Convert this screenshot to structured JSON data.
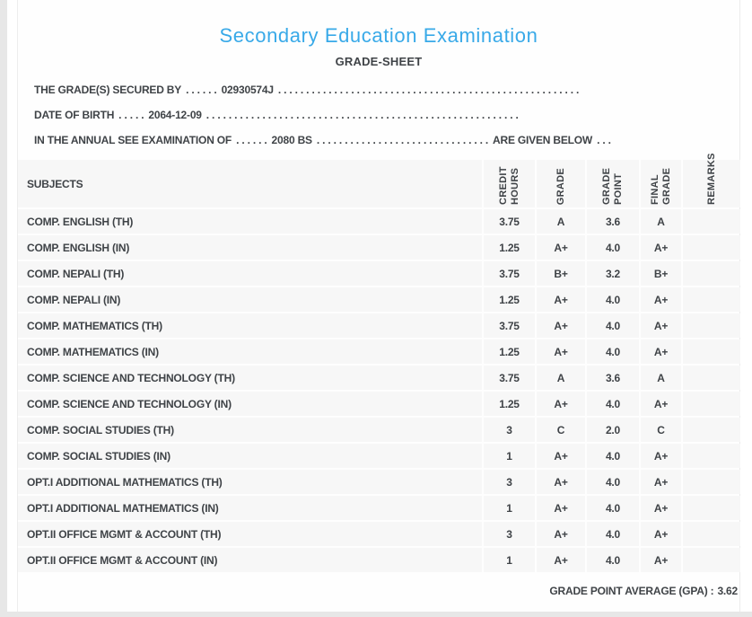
{
  "page": {
    "title": "Secondary Education Examination",
    "subtitle": "GRADE-SHEET"
  },
  "colors": {
    "accent_blue": "#38a9e8",
    "text_dark": "#3f4347",
    "cell_gray": "#f7f7f7"
  },
  "student_lines": {
    "line1": {
      "label": "THE GRADE(S) SECURED BY",
      "dots_before": ". . . . . .",
      "value": "02930574J",
      "dots_after": ". . . . . . . . . . . . . . . . . . . . . . . . . . . . . . . . . . . . . . . . . . . . . . . . . . . . . ."
    },
    "line2": {
      "label": "DATE OF BIRTH",
      "dots_before": ". . . . .",
      "value": "2064-12-09",
      "dots_after": ". . . . . . . . . . . . . . . . . . . . . . . . . . . . . . . . . . . . . . . . . . . . . . . . . . . . . . . ."
    },
    "line3": {
      "label": "IN THE ANNUAL SEE EXAMINATION OF",
      "dots_before": ". . . . . .",
      "value": "2080 BS",
      "dots_mid": ". . . . . . . . . . . . . . . . . . . . . . . . . . . . . . .",
      "suffix": "ARE GIVEN BELOW",
      "dots_end": ". . ."
    }
  },
  "table": {
    "columns": [
      "SUBJECTS",
      "CREDIT HOURS",
      "GRADE",
      "GRADE POINT",
      "FINAL GRADE",
      "REMARKS"
    ],
    "rows": [
      [
        "COMP. ENGLISH (TH)",
        "3.75",
        "A",
        "3.6",
        "A",
        ""
      ],
      [
        "COMP. ENGLISH (IN)",
        "1.25",
        "A+",
        "4.0",
        "A+",
        ""
      ],
      [
        "COMP. NEPALI (TH)",
        "3.75",
        "B+",
        "3.2",
        "B+",
        ""
      ],
      [
        "COMP. NEPALI (IN)",
        "1.25",
        "A+",
        "4.0",
        "A+",
        ""
      ],
      [
        "COMP. MATHEMATICS (TH)",
        "3.75",
        "A+",
        "4.0",
        "A+",
        ""
      ],
      [
        "COMP. MATHEMATICS (IN)",
        "1.25",
        "A+",
        "4.0",
        "A+",
        ""
      ],
      [
        "COMP. SCIENCE AND TECHNOLOGY (TH)",
        "3.75",
        "A",
        "3.6",
        "A",
        ""
      ],
      [
        "COMP. SCIENCE AND TECHNOLOGY (IN)",
        "1.25",
        "A+",
        "4.0",
        "A+",
        ""
      ],
      [
        "COMP. SOCIAL STUDIES (TH)",
        "3",
        "C",
        "2.0",
        "C",
        ""
      ],
      [
        "COMP. SOCIAL STUDIES (IN)",
        "1",
        "A+",
        "4.0",
        "A+",
        ""
      ],
      [
        "OPT.I ADDITIONAL MATHEMATICS (TH)",
        "3",
        "A+",
        "4.0",
        "A+",
        ""
      ],
      [
        "OPT.I ADDITIONAL MATHEMATICS (IN)",
        "1",
        "A+",
        "4.0",
        "A+",
        ""
      ],
      [
        "OPT.II OFFICE MGMT &amp; ACCOUNT (TH)",
        "3",
        "A+",
        "4.0",
        "A+",
        ""
      ],
      [
        "OPT.II OFFICE MGMT &amp; ACCOUNT (IN)",
        "1",
        "A+",
        "4.0",
        "A+",
        ""
      ]
    ]
  },
  "summary": {
    "label": "GRADE POINT AVERAGE (GPA) :",
    "value": "3.62"
  }
}
